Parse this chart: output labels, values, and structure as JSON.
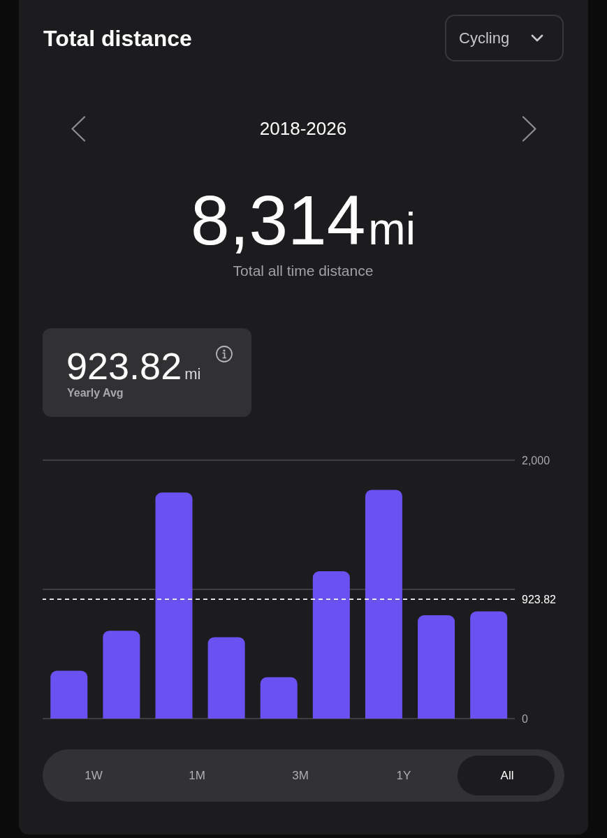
{
  "chart_data": {
    "type": "bar",
    "title": "Total distance",
    "subtitle": "2018-2026",
    "annotations": [
      "Cycling",
      "8,314",
      "mi",
      "Total all time distance",
      "923.82",
      "mi",
      "Yearly Avg",
      "1W",
      "1M",
      "3M",
      "1Y",
      "All"
    ],
    "categories": [
      null,
      null,
      null,
      null,
      null,
      null,
      null,
      null,
      null
    ],
    "values": [
      370,
      680,
      1750,
      630,
      320,
      1140,
      1770,
      800,
      830
    ],
    "color": "#6a52f2",
    "ylim": [
      0,
      2000
    ],
    "yticks": [
      {
        "value": 0,
        "label": "0"
      },
      {
        "value": 1000,
        "label": null
      },
      {
        "value": 2000,
        "label": "2,000"
      }
    ],
    "ref_lines": [
      {
        "axis": "y",
        "value": 923.82,
        "label": "923.82",
        "color": "#ffffff",
        "line_style": "dashed"
      }
    ],
    "grid": "y",
    "tick_labels": "y"
  }
}
